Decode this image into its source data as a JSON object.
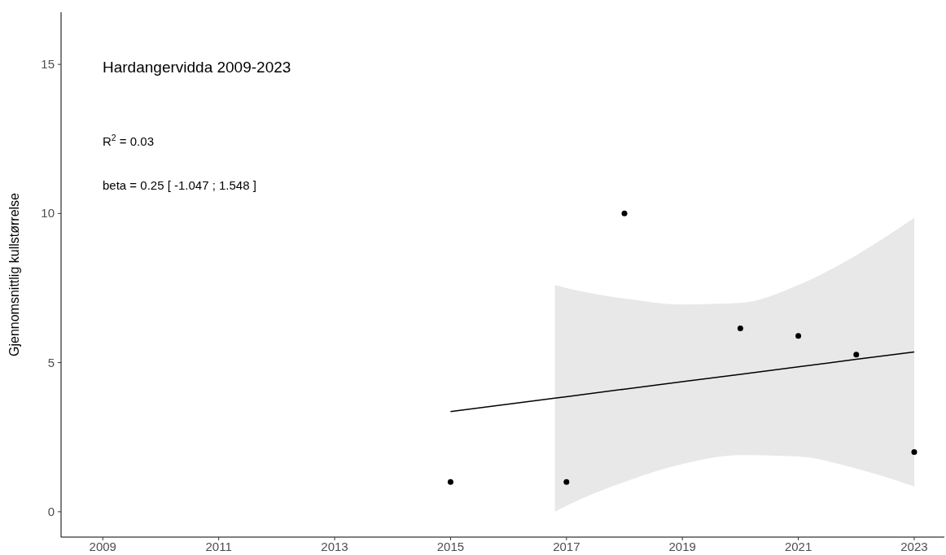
{
  "chart_data": {
    "type": "scatter",
    "title": "Hardangervidda 2009-2023",
    "ylabel": "Gjennomsnittlig kullstørrelse",
    "annotations": [
      "R$^{2}$ = 0.03",
      "beta = 0.25 [ -1.047 ; 1.548 ]"
    ],
    "series": [
      {
        "marker": "circle",
        "color": "#000000",
        "x": [
          2015,
          2017,
          2018,
          2020,
          2021,
          2022,
          2023
        ],
        "values": [
          1,
          1,
          10,
          6.15,
          5.9,
          5.27,
          2
        ]
      },
      {
        "type": "line",
        "color": "#000000",
        "x": [
          2015,
          2016.8,
          2017,
          2018,
          2019,
          2020,
          2021,
          2022,
          2023
        ],
        "values": [
          3.36,
          3.81,
          3.86,
          4.11,
          4.36,
          4.61,
          4.86,
          5.11,
          5.36
        ],
        "lower": [
          null,
          0,
          0.2,
          1.0,
          1.6,
          1.9,
          1.85,
          1.45,
          0.85
        ],
        "upper": [
          null,
          7.6,
          7.5,
          7.15,
          6.95,
          7.0,
          7.6,
          8.6,
          9.85
        ]
      }
    ],
    "xlim": [
      2008.28,
      2023.52
    ],
    "xticks": [
      2009,
      2011,
      2013,
      2015,
      2017,
      2019,
      2021,
      2023
    ],
    "ylim": [
      -0.85,
      16.75
    ],
    "yticks": [
      0,
      5,
      10,
      15
    ],
    "grid": false,
    "line_style": "solid"
  }
}
